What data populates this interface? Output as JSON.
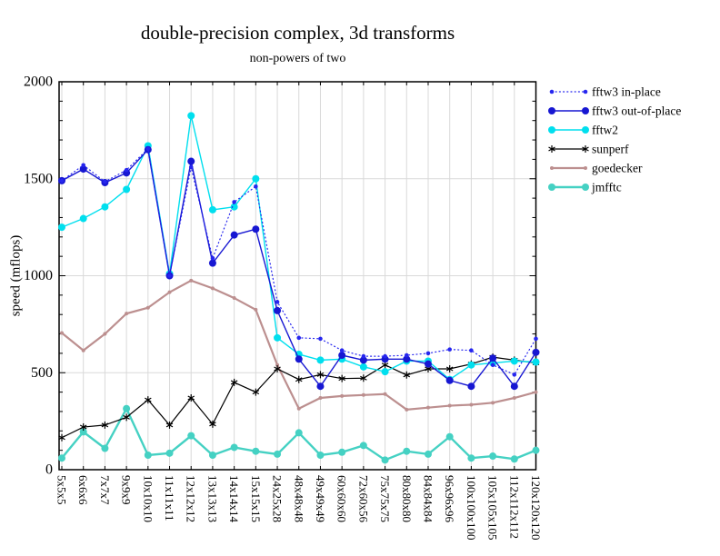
{
  "chart_data": {
    "type": "line",
    "title": "double-precision complex, 3d transforms",
    "subtitle": "non-powers of two",
    "xlabel": "",
    "ylabel": "speed (mflops)",
    "ylim": [
      0,
      2000
    ],
    "yticks": [
      0,
      500,
      1000,
      1500,
      2000
    ],
    "ytick_minor_step": 100,
    "grid_y": [
      500,
      1000,
      1500
    ],
    "grid_x": "every-category",
    "legend_position": "outside-right-top",
    "categories": [
      "5x5x5",
      "6x6x6",
      "7x7x7",
      "9x9x9",
      "10x10x10",
      "11x11x11",
      "12x12x12",
      "13x13x13",
      "14x14x14",
      "15x15x15",
      "24x25x28",
      "48x48x48",
      "49x49x49",
      "60x60x60",
      "72x60x56",
      "75x75x75",
      "80x80x80",
      "84x84x84",
      "96x96x96",
      "100x100x100",
      "105x105x105",
      "112x112x112",
      "120x120x120"
    ],
    "series": [
      {
        "name": "fftw3 in-place",
        "color": "#2626ef",
        "line_style": "dotted",
        "line_width": 1.2,
        "marker": "circle",
        "marker_size": 2.3,
        "values": [
          1490,
          1570,
          1485,
          1545,
          1655,
          1000,
          1560,
          1090,
          1380,
          1460,
          865,
          680,
          675,
          615,
          585,
          585,
          590,
          600,
          620,
          615,
          540,
          490,
          675
        ]
      },
      {
        "name": "fftw3 out-of-place",
        "color": "#1717d2",
        "line_style": "solid",
        "line_width": 1.4,
        "marker": "circle",
        "marker_size": 4,
        "values": [
          1490,
          1550,
          1480,
          1530,
          1650,
          1000,
          1590,
          1065,
          1210,
          1240,
          820,
          570,
          430,
          590,
          565,
          570,
          570,
          545,
          460,
          430,
          575,
          430,
          605
        ]
      },
      {
        "name": "fftw2",
        "color": "#00dfee",
        "line_style": "solid",
        "line_width": 1.4,
        "marker": "circle",
        "marker_size": 4,
        "values": [
          1250,
          1295,
          1355,
          1445,
          1670,
          1010,
          1825,
          1340,
          1355,
          1500,
          680,
          595,
          565,
          570,
          530,
          505,
          560,
          560,
          465,
          540,
          550,
          560,
          555
        ]
      },
      {
        "name": "sunperf",
        "color": "#000000",
        "line_style": "solid",
        "line_width": 1.2,
        "marker": "asterisk",
        "marker_size": 4,
        "values": [
          165,
          220,
          230,
          270,
          360,
          230,
          370,
          235,
          450,
          400,
          520,
          465,
          490,
          470,
          472,
          540,
          488,
          520,
          520,
          545,
          580,
          565,
          550
        ]
      },
      {
        "name": "goedecker",
        "color": "#bc8f8f",
        "line_style": "solid",
        "line_width": 2.2,
        "marker": "circle",
        "marker_size": 2,
        "values": [
          705,
          615,
          700,
          805,
          835,
          915,
          975,
          935,
          885,
          825,
          540,
          315,
          370,
          380,
          385,
          390,
          310,
          320,
          330,
          335,
          345,
          370,
          400
        ]
      },
      {
        "name": "jmfftc",
        "color": "#45d1c3",
        "line_style": "solid",
        "line_width": 2.4,
        "marker": "circle",
        "marker_size": 4,
        "values": [
          60,
          195,
          110,
          315,
          75,
          85,
          175,
          75,
          115,
          95,
          80,
          190,
          75,
          90,
          125,
          50,
          95,
          80,
          170,
          60,
          70,
          55,
          100
        ]
      }
    ]
  }
}
